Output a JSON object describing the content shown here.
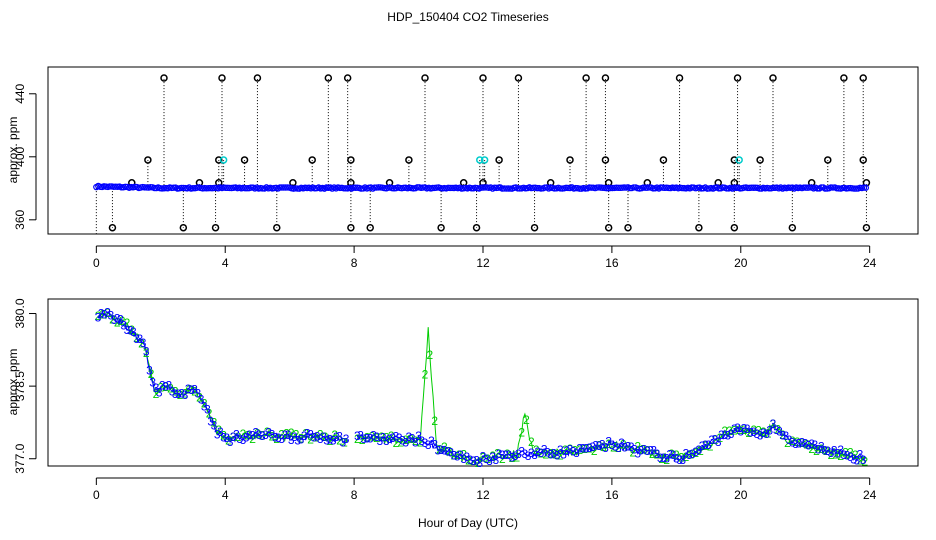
{
  "title": "HDP_150404  CO2 Timeseries",
  "xlabel": "Hour of Day (UTC)",
  "chart_data": [
    {
      "type": "scatter",
      "panel": "top",
      "ylabel": "approx. ppm",
      "xlim": [
        -1.5,
        25.5
      ],
      "ylim": [
        351,
        457
      ],
      "xticks": [
        0,
        4,
        8,
        12,
        16,
        20,
        24
      ],
      "yticks": [
        360,
        400,
        440
      ],
      "baseline": 382,
      "series_colors": {
        "main": "#0000ff",
        "spike": "#000000",
        "mid": "#00cccc"
      },
      "spikes_high": [
        2.1,
        3.9,
        5.0,
        7.2,
        7.8,
        10.2,
        12.0,
        13.1,
        15.2,
        15.8,
        18.1,
        19.9,
        21.0,
        23.2,
        23.8
      ],
      "spikes_398": [
        1.6,
        3.8,
        4.6,
        6.7,
        7.9,
        9.7,
        12.5,
        14.7,
        15.8,
        17.6,
        19.8,
        20.6,
        22.7,
        23.8
      ],
      "spikes_cyan": [
        3.95,
        11.9,
        12.05,
        19.95
      ],
      "spikes_low": [
        0.5,
        2.7,
        3.7,
        5.6,
        7.9,
        8.5,
        10.7,
        11.8,
        13.6,
        15.9,
        16.5,
        18.7,
        19.8,
        21.6,
        23.9
      ],
      "spikes_mid": [
        1.1,
        3.2,
        3.8,
        6.1,
        7.9,
        9.1,
        11.4,
        12.0,
        14.1,
        15.9,
        17.1,
        19.3,
        19.8,
        22.2,
        23.9
      ]
    },
    {
      "type": "line",
      "panel": "bottom",
      "ylabel": "approx. ppm",
      "xlim": [
        -1.5,
        25.5
      ],
      "ylim": [
        376.85,
        380.3
      ],
      "xticks": [
        0,
        4,
        8,
        12,
        16,
        20,
        24
      ],
      "yticks": [
        377.0,
        378.5,
        380.0
      ],
      "ytick_labels": [
        "377.0",
        "378.5",
        "380.0"
      ],
      "gap": [
        7.8,
        8.05
      ],
      "series": [
        {
          "name": "3",
          "color": "#0000ff"
        },
        {
          "name": "2",
          "color": "#00cc00"
        }
      ],
      "profile_x": [
        0,
        0.4,
        1.0,
        1.5,
        1.8,
        2.2,
        2.6,
        3.0,
        3.3,
        3.7,
        4.0,
        5.0,
        6.0,
        7.0,
        7.8,
        8.05,
        9.0,
        10.0,
        10.4,
        11.0,
        11.7,
        12.0,
        13.0,
        15.0,
        16.0,
        17.0,
        18.0,
        18.5,
        19.0,
        19.5,
        20.0,
        20.7,
        21.0,
        21.5,
        22.5,
        23.5,
        23.9
      ],
      "profile_y": [
        379.9,
        380.0,
        379.7,
        379.3,
        378.4,
        378.5,
        378.3,
        378.5,
        378.2,
        377.6,
        377.4,
        377.5,
        377.45,
        377.45,
        377.4,
        377.45,
        377.4,
        377.4,
        377.3,
        377.1,
        376.95,
        377.0,
        377.1,
        377.15,
        377.3,
        377.15,
        377.0,
        377.1,
        377.3,
        377.5,
        377.6,
        377.5,
        377.7,
        377.35,
        377.2,
        377.05,
        377.0
      ],
      "spikes": [
        [
          10.3,
          379.7,
          0.25
        ],
        [
          13.3,
          377.95,
          0.25
        ]
      ]
    }
  ]
}
